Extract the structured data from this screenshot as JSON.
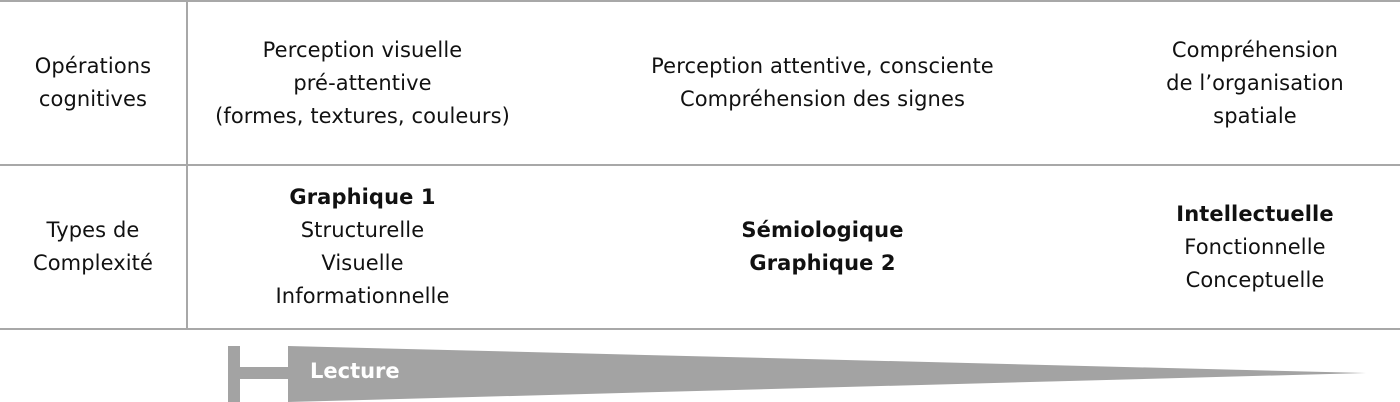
{
  "colors": {
    "grid_lines": "#a8a8a8",
    "arrow_fill": "#a3a3a3",
    "text": "#111111",
    "arrow_text": "#ffffff"
  },
  "rows": [
    {
      "header": [
        "Opérations",
        "cognitives"
      ],
      "cells": [
        {
          "lines": [
            "Perception visuelle",
            "pré-attentive",
            "(formes, textures, couleurs)"
          ],
          "bold_lines": []
        },
        {
          "lines": [
            "Perception attentive, consciente",
            "Compréhension des signes"
          ],
          "bold_lines": []
        },
        {
          "lines": [
            "Compréhension",
            "de l’organisation",
            "spatiale"
          ],
          "bold_lines": []
        }
      ]
    },
    {
      "header": [
        "Types de",
        "Complexité"
      ],
      "cells": [
        {
          "lines": [
            "Graphique 1",
            "Structurelle",
            "Visuelle",
            "Informationnelle"
          ],
          "bold_lines": [
            0
          ]
        },
        {
          "lines": [
            "Sémiologique",
            "Graphique 2"
          ],
          "bold_lines": [
            0,
            1
          ]
        },
        {
          "lines": [
            "Intellectuelle",
            "Fonctionnelle",
            "Conceptuelle"
          ],
          "bold_lines": [
            0
          ]
        }
      ]
    }
  ],
  "arrow": {
    "label": "Lecture"
  }
}
